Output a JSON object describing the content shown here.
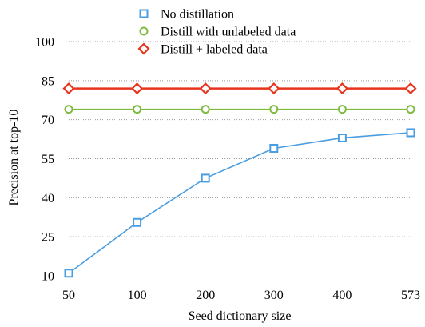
{
  "chart_data": {
    "type": "line",
    "title": "",
    "xlabel": "Seed dictionary size",
    "ylabel": "Precision at  top-10",
    "categories": [
      "50",
      "100",
      "200",
      "300",
      "400",
      "573"
    ],
    "yticks": [
      10,
      25,
      40,
      55,
      70,
      85,
      100
    ],
    "ylim": [
      10,
      100
    ],
    "grid": true,
    "legend_position": "top",
    "series": [
      {
        "name": "No distillation",
        "values": [
          11,
          30.5,
          47.5,
          59,
          63,
          65
        ],
        "color": "#4a9de0",
        "marker": "square"
      },
      {
        "name": "Distill with unlabeled data",
        "values": [
          74,
          74,
          74,
          74,
          74,
          74
        ],
        "color": "#7dbb3f",
        "marker": "circle"
      },
      {
        "name": "Distill + labeled data",
        "values": [
          82,
          82,
          82,
          82,
          82,
          82
        ],
        "color": "#e8341c",
        "marker": "diamond"
      }
    ]
  }
}
